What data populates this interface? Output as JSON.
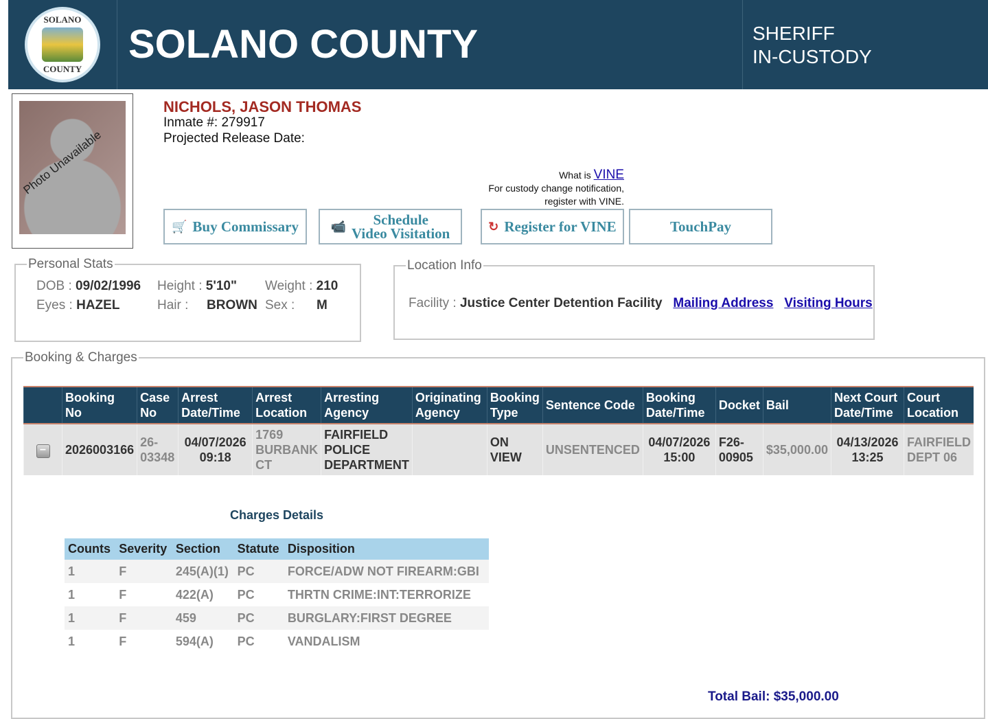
{
  "header": {
    "logo_text_top": "SOLANO",
    "logo_text_bottom": "COUNTY",
    "title": "SOLANO COUNTY",
    "subtitle_line1": "SHERIFF",
    "subtitle_line2": "IN-CUSTODY"
  },
  "inmate": {
    "photo_text": "Photo Unavailable",
    "name": "NICHOLS, JASON THOMAS",
    "inmate_no": "Inmate #: 279917",
    "release_date": "Projected Release Date:"
  },
  "vine": {
    "what_is": "What is ",
    "link": "VINE",
    "line2": "For custody change notification,",
    "line3": "register with VINE."
  },
  "buttons": {
    "commissary": "Buy Commissary",
    "video1": "Schedule",
    "video2": "Video Visitation",
    "vine": "Register for VINE",
    "touchpay": "TouchPay"
  },
  "personal": {
    "legend": "Personal Stats",
    "dob_l": "DOB :",
    "dob": "09/02/1996",
    "height_l": "Height :",
    "height": "5'10\"",
    "weight_l": "Weight :",
    "weight": "210",
    "eyes_l": "Eyes :",
    "eyes": "HAZEL",
    "hair_l": "Hair :",
    "hair": "BROWN",
    "sex_l": "Sex :",
    "sex": "M"
  },
  "location": {
    "legend": "Location Info",
    "facility_l": "Facility :",
    "facility": "Justice Center Detention Facility",
    "mailing": "Mailing Address",
    "visiting": "Visiting Hours"
  },
  "booking": {
    "legend": "Booking & Charges",
    "headers": [
      "Booking No",
      "Case No",
      "Arrest Date/Time",
      "Arrest Location",
      "Arresting Agency",
      "Originating Agency",
      "Booking Type",
      "Sentence Code",
      "Booking Date/Time",
      "Docket",
      "Bail",
      "Next Court Date/Time",
      "Court Location"
    ],
    "row": [
      "2026003166",
      "26-03348",
      "04/07/2026 09:18",
      "1769 BURBANK CT",
      "FAIRFIELD POLICE DEPARTMENT",
      "",
      "ON VIEW",
      "UNSENTENCED",
      "04/07/2026 15:00",
      "F26-00905",
      "$35,000.00",
      "04/13/2026 13:25",
      "FAIRFIELD DEPT 06"
    ]
  },
  "charges": {
    "title": "Charges Details",
    "headers": [
      "Counts",
      "Severity",
      "Section",
      "Statute",
      "Disposition"
    ],
    "rows": [
      [
        "1",
        "F",
        "245(A)(1)",
        "PC",
        "FORCE/ADW NOT FIREARM:GBI"
      ],
      [
        "1",
        "F",
        "422(A)",
        "PC",
        "THRTN CRIME:INT:TERRORIZE"
      ],
      [
        "1",
        "F",
        "459",
        "PC",
        "BURGLARY:FIRST DEGREE"
      ],
      [
        "1",
        "F",
        "594(A)",
        "PC",
        "VANDALISM"
      ]
    ]
  },
  "total_bail": "Total Bail: $35,000.00",
  "colors": {
    "header_bg": "#1e455f",
    "name": "#a32a22",
    "link": "#1a0dab",
    "charges_header": "#a9d3ea"
  }
}
